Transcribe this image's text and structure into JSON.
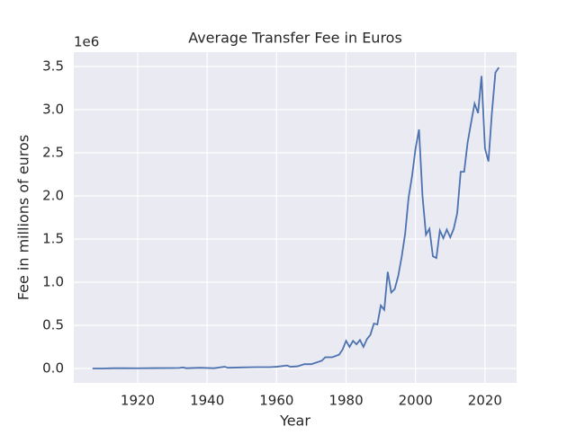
{
  "chart_data": {
    "type": "line",
    "title": "Average Transfer Fee in Euros",
    "x_label": "Year",
    "y_label": "Fee in millions of euros",
    "offset_label": "1e6",
    "x": [
      1907,
      1910,
      1913,
      1916,
      1920,
      1925,
      1930,
      1932,
      1933,
      1934,
      1938,
      1942,
      1945,
      1946,
      1950,
      1954,
      1958,
      1960,
      1963,
      1964,
      1966,
      1968,
      1970,
      1973,
      1974,
      1976,
      1978,
      1979,
      1980,
      1981,
      1982,
      1983,
      1984,
      1985,
      1986,
      1987,
      1988,
      1989,
      1990,
      1991,
      1992,
      1993,
      1994,
      1995,
      1996,
      1997,
      1998,
      1999,
      2000,
      2001,
      2002,
      2003,
      2004,
      2005,
      2006,
      2007,
      2008,
      2009,
      2010,
      2011,
      2012,
      2013,
      2014,
      2015,
      2016,
      2017,
      2018,
      2019,
      2020,
      2021,
      2022,
      2023,
      2024
    ],
    "series": [
      {
        "name": "Average Transfer Fee",
        "color": "#4c72b0",
        "values": [
          0.0,
          0.0,
          0.003,
          0.003,
          0.002,
          0.004,
          0.005,
          0.006,
          0.012,
          0.003,
          0.008,
          0.003,
          0.02,
          0.008,
          0.012,
          0.015,
          0.015,
          0.02,
          0.035,
          0.02,
          0.025,
          0.05,
          0.05,
          0.09,
          0.13,
          0.13,
          0.16,
          0.22,
          0.32,
          0.25,
          0.32,
          0.28,
          0.33,
          0.25,
          0.34,
          0.39,
          0.52,
          0.51,
          0.73,
          0.68,
          1.12,
          0.88,
          0.92,
          1.07,
          1.29,
          1.56,
          1.98,
          2.23,
          2.55,
          2.77,
          2.0,
          1.55,
          1.62,
          1.3,
          1.28,
          1.6,
          1.51,
          1.61,
          1.52,
          1.62,
          1.8,
          2.28,
          2.28,
          2.62,
          2.85,
          3.07,
          2.96,
          3.39,
          2.55,
          2.4,
          2.97,
          3.43,
          3.49
        ]
      }
    ],
    "xlim": [
      1901.6,
      2029.1
    ],
    "xticks": [
      1920,
      1940,
      1960,
      1980,
      2000,
      2020
    ],
    "ylim": [
      -0.167,
      3.667
    ],
    "yticks": [
      {
        "value": 0,
        "label": "0.0"
      },
      {
        "value": 0.5,
        "label": "0.5"
      },
      {
        "value": 1,
        "label": "1.0"
      },
      {
        "value": 1.5,
        "label": "1.5"
      },
      {
        "value": 2,
        "label": "2.0"
      },
      {
        "value": 2.5,
        "label": "2.5"
      },
      {
        "value": 3,
        "label": "3.0"
      },
      {
        "value": 3.5,
        "label": "3.5"
      }
    ],
    "grid": true
  }
}
